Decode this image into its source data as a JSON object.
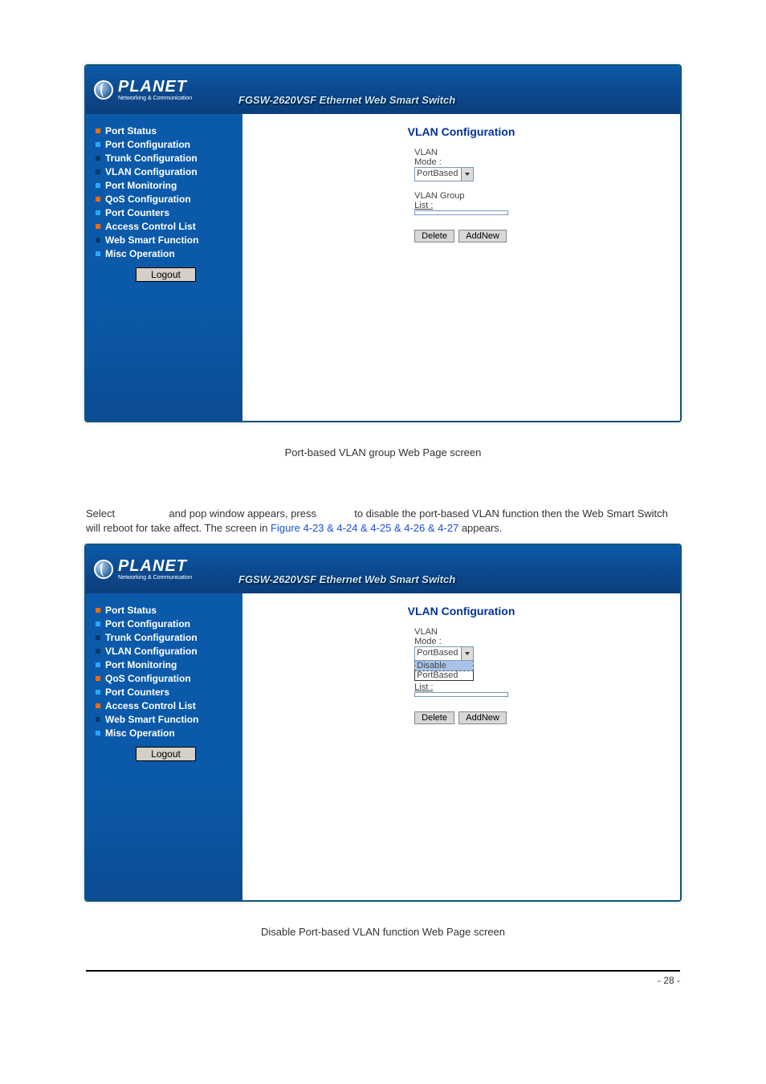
{
  "brand": {
    "name": "PLANET",
    "sub": "Networking & Communication"
  },
  "header": {
    "title": "FGSW-2620VSF Ethernet Web Smart Switch"
  },
  "sidebar": {
    "items": [
      {
        "label": "Port Status",
        "bullet": "#ff6a00"
      },
      {
        "label": "Port Configuration",
        "bullet": "#2aa8ff"
      },
      {
        "label": "Trunk Configuration",
        "bullet": "#003a6b"
      },
      {
        "label": "VLAN Configuration",
        "bullet": "#003a6b"
      },
      {
        "label": "Port Monitoring",
        "bullet": "#2aa8ff"
      },
      {
        "label": "QoS Configuration",
        "bullet": "#ff6a00"
      },
      {
        "label": "Port Counters",
        "bullet": "#2aa8ff"
      },
      {
        "label": "Access Control List",
        "bullet": "#ff6a00"
      },
      {
        "label": "Web Smart Function",
        "bullet": "#003a6b"
      },
      {
        "label": "Misc Operation",
        "bullet": "#2aa8ff"
      }
    ],
    "logout": "Logout"
  },
  "config": {
    "title": "VLAN Configuration",
    "mode_label_top": "VLAN",
    "mode_label_bot": "Mode :",
    "mode_value": "PortBased",
    "group_label_top": "VLAN Group",
    "group_label_bot": "List :",
    "delete_btn": "Delete",
    "addnew_btn": "AddNew",
    "dropdown": {
      "opt1": "Disable",
      "opt2": "PortBased"
    }
  },
  "captions": {
    "fig1": "Port-based VLAN group Web Page screen",
    "fig2": "Disable Port-based VLAN function Web Page screen"
  },
  "instruction": {
    "pre": "Select",
    "mid": "and pop window appears, press",
    "post": "to disable the port-based VLAN function then the Web Smart Switch will reboot for take affect. The screen in",
    "link": "Figure 4-23 & 4-24 & 4-25 & 4-26 & 4-27",
    "tail": "appears."
  },
  "page_number": "- 28 -"
}
